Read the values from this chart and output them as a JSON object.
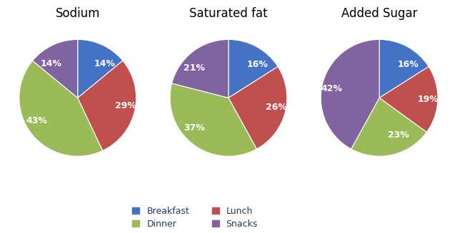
{
  "charts": [
    {
      "title": "Sodium",
      "values": [
        14,
        29,
        43,
        14
      ],
      "labels": [
        "14%",
        "29%",
        "43%",
        "14%"
      ],
      "startangle": 90
    },
    {
      "title": "Saturated fat",
      "values": [
        16,
        26,
        37,
        21
      ],
      "labels": [
        "16%",
        "26%",
        "37%",
        "21%"
      ],
      "startangle": 90
    },
    {
      "title": "Added Sugar",
      "values": [
        16,
        19,
        23,
        42
      ],
      "labels": [
        "16%",
        "19%",
        "23%",
        "42%"
      ],
      "startangle": 90
    }
  ],
  "colors": [
    "#4472C4",
    "#C0504D",
    "#9BBB59",
    "#8064A2"
  ],
  "legend_labels": [
    "Breakfast",
    "Lunch",
    "Dinner",
    "Snacks"
  ],
  "legend_colors": [
    "#4472C4",
    "#C0504D",
    "#9BBB59",
    "#8064A2"
  ],
  "text_color": "#FFFFFF",
  "title_fontsize": 12,
  "label_fontsize": 9,
  "legend_fontsize": 9,
  "background_color": "#FFFFFF",
  "label_distance": 0.65
}
